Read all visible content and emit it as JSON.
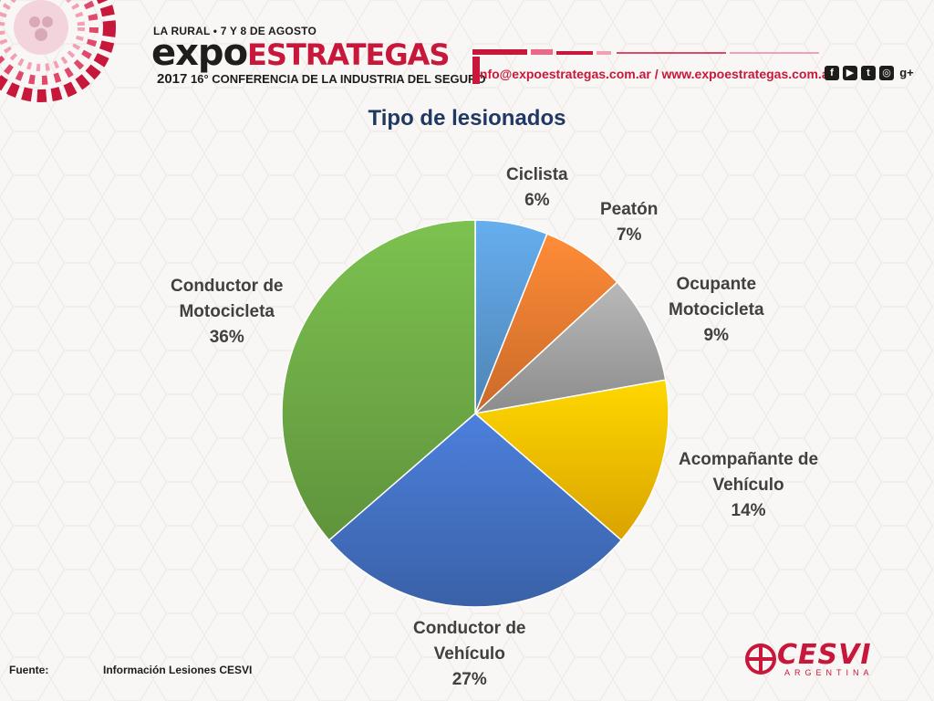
{
  "header": {
    "event_top": "LA RURAL • 7 Y 8 DE AGOSTO",
    "brand_expo": "expo",
    "brand_estrategas": "ESTRATEGAS",
    "year": "2017",
    "subtitle": "16° CONFERENCIA DE LA INDUSTRIA DEL SEGURO",
    "contact": "info@expoestrategas.com.ar / www.expoestrategas.com.ar",
    "social_icons": [
      "facebook-icon",
      "youtube-icon",
      "twitter-icon",
      "instagram-icon",
      "google-plus-icon"
    ],
    "google_plus": "g+"
  },
  "chart_data": {
    "type": "pie",
    "title": "Tipo de lesionados",
    "slices": [
      {
        "label_lines": [
          "Ciclista"
        ],
        "percent_text": "6%",
        "value": 6,
        "color": "#5b9bd5"
      },
      {
        "label_lines": [
          "Peatón"
        ],
        "percent_text": "7%",
        "value": 7,
        "color": "#ed7d31"
      },
      {
        "label_lines": [
          "Ocupante",
          "Motocicleta"
        ],
        "percent_text": "9%",
        "value": 9,
        "color": "#a5a5a5"
      },
      {
        "label_lines": [
          "Acompañante de",
          "Vehículo"
        ],
        "percent_text": "14%",
        "value": 14,
        "color": "#ffc000"
      },
      {
        "label_lines": [
          "Conductor de",
          "Vehículo"
        ],
        "percent_text": "27%",
        "value": 27,
        "color": "#4472c4"
      },
      {
        "label_lines": [
          "Conductor de",
          "Motocicleta"
        ],
        "percent_text": "36%",
        "value": 36,
        "color": "#70ad47"
      }
    ]
  },
  "footer": {
    "source_label": "Fuente:",
    "source_value": "Información Lesiones CESVI",
    "cesvi_name": "CESVI",
    "cesvi_country": "ARGENTINA"
  },
  "colors": {
    "brand_red": "#c7173a",
    "title_blue": "#1f3864",
    "label_gray": "#404040"
  }
}
